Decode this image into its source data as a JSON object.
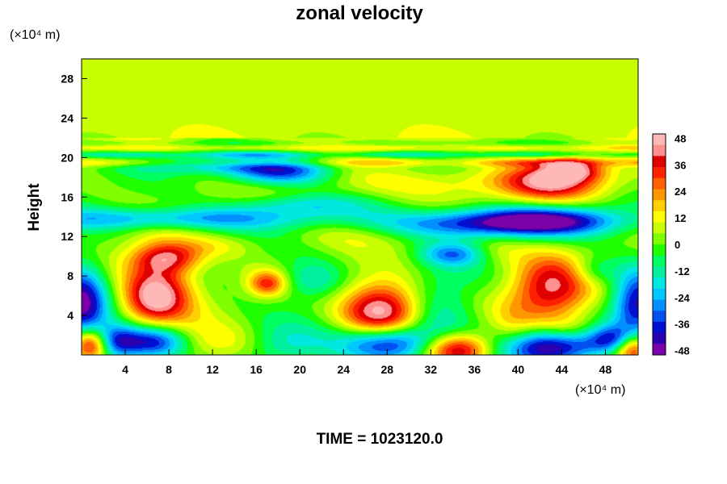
{
  "chart_data": {
    "type": "heatmap",
    "title": "zonal velocity",
    "xlabel": "",
    "ylabel": "Height",
    "x_unit": "(×10⁴ m)",
    "y_unit": "(×10⁴ m)",
    "footer": "TIME = 1023120.0",
    "xlim": [
      0,
      51
    ],
    "ylim": [
      0,
      30
    ],
    "x_ticks": [
      4,
      8,
      12,
      16,
      20,
      24,
      28,
      32,
      36,
      40,
      44,
      48
    ],
    "y_ticks": [
      4,
      8,
      12,
      16,
      20,
      24,
      28
    ],
    "colorbar": {
      "range": [
        -50,
        50
      ],
      "ticks": [
        48,
        36,
        24,
        12,
        0,
        -12,
        -24,
        -36,
        -48
      ],
      "colors": [
        "#7b00a8",
        "#2a00b0",
        "#0010d0",
        "#0050f0",
        "#0090ff",
        "#00c8ff",
        "#00e8e0",
        "#00f0a0",
        "#00ff60",
        "#20ff00",
        "#80ff00",
        "#c8ff00",
        "#ffff00",
        "#ffd000",
        "#ff9800",
        "#ff6000",
        "#ff2000",
        "#e00000",
        "#ff9090",
        "#ffb8b8"
      ]
    },
    "features": [
      {
        "x": 35,
        "y": 17.5,
        "sx": 14,
        "sy": 1.2,
        "value": 14
      },
      {
        "x": 18,
        "y": 18.5,
        "sx": 3.5,
        "sy": 1.0,
        "value": -40
      },
      {
        "x": 12,
        "y": 19.3,
        "sx": 5,
        "sy": 0.6,
        "value": -20
      },
      {
        "x": 43,
        "y": 17.5,
        "sx": 3,
        "sy": 1.4,
        "value": 30
      },
      {
        "x": 45,
        "y": 18.8,
        "sx": 2,
        "sy": 0.8,
        "value": 34
      },
      {
        "x": 8,
        "y": 13.8,
        "sx": 9,
        "sy": 0.8,
        "value": -28
      },
      {
        "x": 36,
        "y": 13.3,
        "sx": 6,
        "sy": 1.0,
        "value": -34
      },
      {
        "x": 43,
        "y": 13.6,
        "sx": 5,
        "sy": 1.0,
        "value": -36
      },
      {
        "x": 20,
        "y": 15.2,
        "sx": 4,
        "sy": 0.8,
        "value": -18
      },
      {
        "x": 34,
        "y": 10.2,
        "sx": 2,
        "sy": 0.8,
        "value": -24
      },
      {
        "x": 7,
        "y": 7,
        "sx": 2.4,
        "sy": 3.0,
        "value": 38
      },
      {
        "x": 8,
        "y": 9.8,
        "sx": 2.2,
        "sy": 1.0,
        "value": 26
      },
      {
        "x": 6.5,
        "y": 5.5,
        "sx": 1.8,
        "sy": 1.5,
        "value": 16
      },
      {
        "x": 0,
        "y": 5,
        "sx": 1.6,
        "sy": 3.0,
        "value": -44
      },
      {
        "x": 51,
        "y": 5,
        "sx": 1.6,
        "sy": 2.5,
        "value": -42
      },
      {
        "x": 3,
        "y": 1.3,
        "sx": 1.5,
        "sy": 1.3,
        "value": -35
      },
      {
        "x": 0.8,
        "y": 1.0,
        "sx": 1.2,
        "sy": 1.2,
        "value": 50
      },
      {
        "x": 6.5,
        "y": 1.3,
        "sx": 2.2,
        "sy": 1.2,
        "value": -46
      },
      {
        "x": 13,
        "y": 1.0,
        "sx": 4,
        "sy": 1.5,
        "value": 18
      },
      {
        "x": 18,
        "y": 0.8,
        "sx": 3,
        "sy": 1.5,
        "value": -20
      },
      {
        "x": 17,
        "y": 7.2,
        "sx": 1.2,
        "sy": 0.9,
        "value": 30
      },
      {
        "x": 21,
        "y": 7.5,
        "sx": 2.0,
        "sy": 1.4,
        "value": -18
      },
      {
        "x": 27.5,
        "y": 4.5,
        "sx": 2.6,
        "sy": 2.2,
        "value": 52
      },
      {
        "x": 28,
        "y": 1.2,
        "sx": 3,
        "sy": 1.3,
        "value": -52
      },
      {
        "x": 34.5,
        "y": 0.5,
        "sx": 2.2,
        "sy": 1.2,
        "value": 50
      },
      {
        "x": 33,
        "y": 4.5,
        "sx": 2.5,
        "sy": 3.0,
        "value": -16
      },
      {
        "x": 39.5,
        "y": 2.5,
        "sx": 1.5,
        "sy": 2.0,
        "value": 10
      },
      {
        "x": 43,
        "y": 6.5,
        "sx": 2.6,
        "sy": 2.6,
        "value": 40
      },
      {
        "x": 43,
        "y": 0.8,
        "sx": 3.2,
        "sy": 1.3,
        "value": -50
      },
      {
        "x": 49,
        "y": 1.6,
        "sx": 1.8,
        "sy": 1.0,
        "value": -34
      },
      {
        "x": 50.5,
        "y": 0.8,
        "sx": 1.2,
        "sy": 1.2,
        "value": 50
      },
      {
        "x": 45,
        "y": 2.5,
        "sx": 2.0,
        "sy": 1.0,
        "value": 12
      },
      {
        "x": 38,
        "y": 10.5,
        "sx": 2,
        "sy": 1.2,
        "value": 8
      },
      {
        "x": 47,
        "y": 8.5,
        "sx": 1.5,
        "sy": 1.0,
        "value": -14
      },
      {
        "x": 24,
        "y": 12,
        "sx": 4,
        "sy": 1.0,
        "value": 6
      },
      {
        "x": 12,
        "y": 11,
        "sx": 3,
        "sy": 0.8,
        "value": 10
      }
    ],
    "bands": [
      {
        "y": 21.0,
        "sy": 0.22,
        "value": 14
      },
      {
        "y": 20.3,
        "sy": 0.2,
        "value": -12
      },
      {
        "y": 22.0,
        "sy": 0.25,
        "value": 8
      },
      {
        "y": 19.5,
        "sy": 0.3,
        "value": 16
      }
    ]
  }
}
